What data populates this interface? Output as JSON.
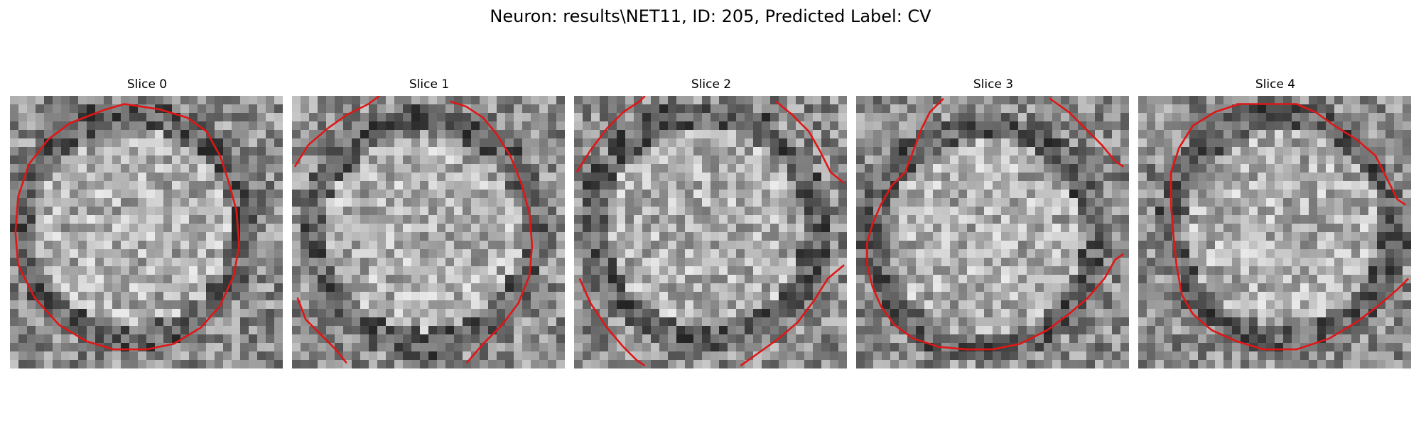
{
  "figure": {
    "title": "Neuron: results\\NET11, ID: 205, Predicted Label: CV"
  },
  "colors": {
    "contour": "#e01616",
    "background": "#ffffff"
  },
  "panels": [
    {
      "title": "Slice 0",
      "contour_segments": [
        [
          [
            0.35,
            0.05
          ],
          [
            0.42,
            0.03
          ],
          [
            0.55,
            0.05
          ],
          [
            0.65,
            0.08
          ],
          [
            0.72,
            0.13
          ],
          [
            0.77,
            0.22
          ],
          [
            0.8,
            0.31
          ],
          [
            0.83,
            0.42
          ],
          [
            0.84,
            0.55
          ],
          [
            0.82,
            0.66
          ],
          [
            0.77,
            0.77
          ],
          [
            0.7,
            0.85
          ],
          [
            0.6,
            0.91
          ],
          [
            0.5,
            0.93
          ],
          [
            0.38,
            0.93
          ],
          [
            0.28,
            0.9
          ],
          [
            0.18,
            0.84
          ],
          [
            0.09,
            0.74
          ],
          [
            0.03,
            0.62
          ],
          [
            0.02,
            0.5
          ],
          [
            0.03,
            0.37
          ],
          [
            0.07,
            0.25
          ],
          [
            0.14,
            0.16
          ],
          [
            0.22,
            0.1
          ],
          [
            0.35,
            0.05
          ]
        ]
      ]
    },
    {
      "title": "Slice 1",
      "contour_segments": [
        [
          [
            0.01,
            0.26
          ],
          [
            0.06,
            0.18
          ],
          [
            0.13,
            0.12
          ],
          [
            0.2,
            0.07
          ],
          [
            0.28,
            0.03
          ],
          [
            0.32,
            0.0
          ]
        ],
        [
          [
            0.58,
            0.02
          ],
          [
            0.64,
            0.04
          ],
          [
            0.7,
            0.08
          ],
          [
            0.75,
            0.14
          ],
          [
            0.8,
            0.22
          ],
          [
            0.84,
            0.32
          ],
          [
            0.87,
            0.43
          ],
          [
            0.88,
            0.55
          ],
          [
            0.87,
            0.66
          ],
          [
            0.83,
            0.76
          ],
          [
            0.77,
            0.84
          ],
          [
            0.7,
            0.91
          ],
          [
            0.64,
            0.98
          ]
        ],
        [
          [
            0.02,
            0.74
          ],
          [
            0.05,
            0.82
          ],
          [
            0.11,
            0.88
          ],
          [
            0.16,
            0.93
          ],
          [
            0.2,
            0.98
          ]
        ]
      ]
    },
    {
      "title": "Slice 2",
      "contour_segments": [
        [
          [
            0.01,
            0.28
          ],
          [
            0.06,
            0.2
          ],
          [
            0.12,
            0.12
          ],
          [
            0.18,
            0.06
          ],
          [
            0.24,
            0.02
          ],
          [
            0.26,
            0.0
          ]
        ],
        [
          [
            0.74,
            0.02
          ],
          [
            0.8,
            0.07
          ],
          [
            0.86,
            0.13
          ],
          [
            0.9,
            0.2
          ],
          [
            0.94,
            0.28
          ],
          [
            0.99,
            0.32
          ]
        ],
        [
          [
            0.02,
            0.67
          ],
          [
            0.06,
            0.76
          ],
          [
            0.12,
            0.85
          ],
          [
            0.18,
            0.92
          ],
          [
            0.23,
            0.97
          ],
          [
            0.26,
            0.99
          ]
        ],
        [
          [
            0.61,
            0.99
          ],
          [
            0.68,
            0.94
          ],
          [
            0.75,
            0.89
          ],
          [
            0.82,
            0.83
          ],
          [
            0.88,
            0.75
          ],
          [
            0.93,
            0.67
          ],
          [
            0.99,
            0.62
          ]
        ]
      ]
    },
    {
      "title": "Slice 3",
      "contour_segments": [
        [
          [
            0.32,
            0.01
          ],
          [
            0.27,
            0.06
          ],
          [
            0.24,
            0.12
          ],
          [
            0.21,
            0.2
          ],
          [
            0.18,
            0.28
          ],
          [
            0.13,
            0.33
          ],
          [
            0.09,
            0.4
          ],
          [
            0.06,
            0.47
          ],
          [
            0.04,
            0.54
          ],
          [
            0.04,
            0.62
          ],
          [
            0.06,
            0.7
          ],
          [
            0.09,
            0.77
          ],
          [
            0.14,
            0.84
          ],
          [
            0.21,
            0.89
          ],
          [
            0.3,
            0.92
          ],
          [
            0.4,
            0.93
          ],
          [
            0.5,
            0.93
          ],
          [
            0.6,
            0.91
          ],
          [
            0.7,
            0.86
          ],
          [
            0.78,
            0.8
          ],
          [
            0.85,
            0.74
          ],
          [
            0.91,
            0.67
          ],
          [
            0.95,
            0.6
          ],
          [
            0.98,
            0.58
          ]
        ],
        [
          [
            0.71,
            0.01
          ],
          [
            0.78,
            0.06
          ],
          [
            0.84,
            0.12
          ],
          [
            0.9,
            0.18
          ],
          [
            0.95,
            0.24
          ],
          [
            0.98,
            0.26
          ]
        ]
      ]
    },
    {
      "title": "Slice 4",
      "contour_segments": [
        [
          [
            0.36,
            0.03
          ],
          [
            0.58,
            0.03
          ],
          [
            0.65,
            0.06
          ],
          [
            0.72,
            0.11
          ],
          [
            0.8,
            0.16
          ],
          [
            0.87,
            0.22
          ],
          [
            0.91,
            0.3
          ],
          [
            0.95,
            0.38
          ],
          [
            0.98,
            0.4
          ]
        ],
        [
          [
            0.37,
            0.03
          ],
          [
            0.28,
            0.06
          ],
          [
            0.2,
            0.11
          ],
          [
            0.15,
            0.19
          ],
          [
            0.12,
            0.28
          ],
          [
            0.12,
            0.4
          ],
          [
            0.13,
            0.52
          ],
          [
            0.14,
            0.62
          ],
          [
            0.16,
            0.73
          ],
          [
            0.2,
            0.8
          ],
          [
            0.27,
            0.86
          ],
          [
            0.36,
            0.9
          ],
          [
            0.46,
            0.93
          ],
          [
            0.58,
            0.93
          ],
          [
            0.7,
            0.89
          ],
          [
            0.8,
            0.83
          ],
          [
            0.88,
            0.77
          ],
          [
            0.95,
            0.71
          ],
          [
            0.99,
            0.67
          ]
        ]
      ]
    }
  ]
}
